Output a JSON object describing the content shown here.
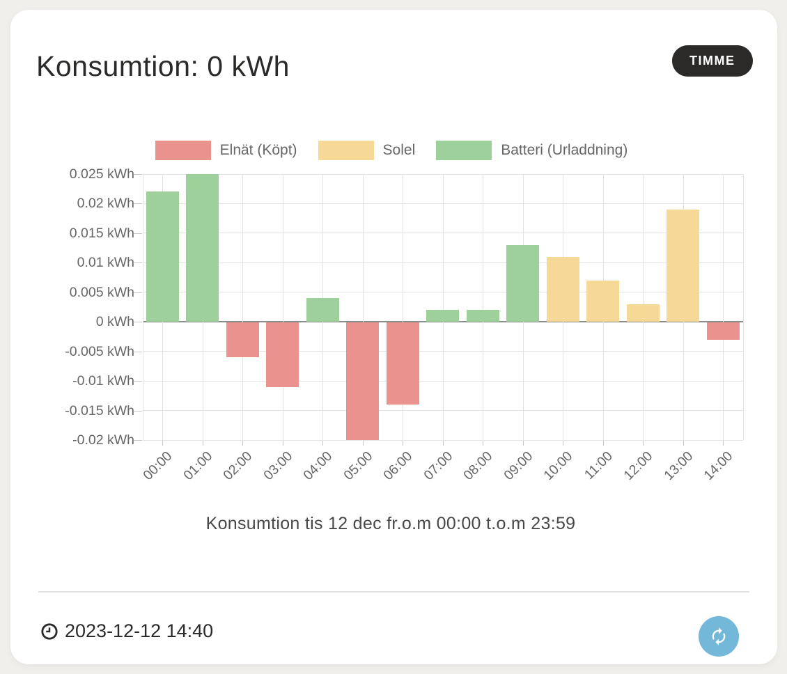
{
  "header": {
    "title": "Konsumtion: 0 kWh",
    "period_button_label": "TIMME"
  },
  "chart_data": {
    "type": "bar",
    "categories": [
      "00:00",
      "01:00",
      "02:00",
      "03:00",
      "04:00",
      "05:00",
      "06:00",
      "07:00",
      "08:00",
      "09:00",
      "10:00",
      "11:00",
      "12:00",
      "13:00",
      "14:00"
    ],
    "series": [
      {
        "name": "Elnät (Köpt)",
        "color": "#e9928e",
        "values": [
          null,
          null,
          -0.006,
          -0.011,
          null,
          -0.02,
          -0.014,
          null,
          null,
          null,
          null,
          null,
          null,
          null,
          -0.003
        ]
      },
      {
        "name": "Solel",
        "color": "#f6d997",
        "values": [
          null,
          null,
          null,
          null,
          null,
          null,
          null,
          null,
          null,
          null,
          0.011,
          0.007,
          0.003,
          0.019,
          null
        ]
      },
      {
        "name": "Batteri (Urladdning)",
        "color": "#9dd09a",
        "values": [
          0.022,
          0.025,
          null,
          null,
          0.004,
          null,
          null,
          0.002,
          0.002,
          0.013,
          null,
          null,
          null,
          null,
          null
        ]
      }
    ],
    "ylim": [
      -0.02,
      0.025
    ],
    "y_tick_step": 0.005,
    "y_ticks": [
      "0.025 kWh",
      "0.02 kWh",
      "0.015 kWh",
      "0.01 kWh",
      "0.005 kWh",
      "0 kWh",
      "-0.005 kWh",
      "-0.01 kWh",
      "-0.015 kWh",
      "-0.02 kWh"
    ],
    "xlabel": "",
    "ylabel": "",
    "grid": true,
    "legend_position": "top",
    "caption": "Konsumtion tis 12 dec fr.o.m 00:00 t.o.m 23:59"
  },
  "footer": {
    "last_updated": "2023-12-12 14:40"
  },
  "icons": {
    "clock": "clock-icon",
    "refresh": "refresh-icon"
  },
  "colors": {
    "page_bg": "#f1efec",
    "card_bg": "#ffffff",
    "pill_bg": "#2b2a29",
    "pill_text": "#ffffff",
    "refresh_button": "#74b8d9",
    "grid_line": "#e3e3e3",
    "zero_line": "#8c8c8c",
    "axis_text": "#666666",
    "title_text": "#2b2a29"
  }
}
